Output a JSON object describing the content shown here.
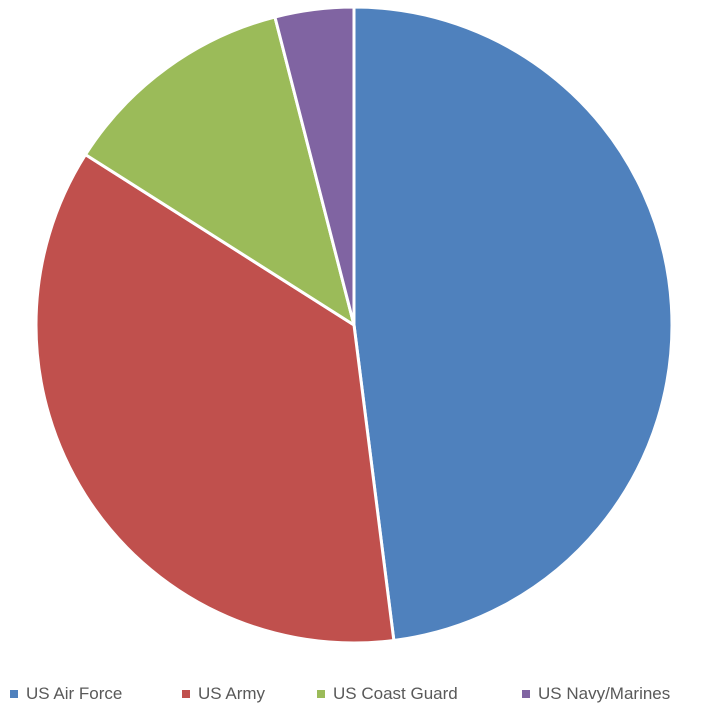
{
  "chart_data": {
    "type": "pie",
    "title": "",
    "categories": [
      "US Air Force",
      "US Army",
      "US Coast Guard",
      "US Navy/Marines"
    ],
    "values": [
      48,
      36,
      12,
      4
    ],
    "colors": [
      "#4f81bd",
      "#c0504d",
      "#9bbb59",
      "#8064a2"
    ],
    "legend_position": "bottom",
    "start_angle_deg": 0,
    "direction": "clockwise"
  }
}
